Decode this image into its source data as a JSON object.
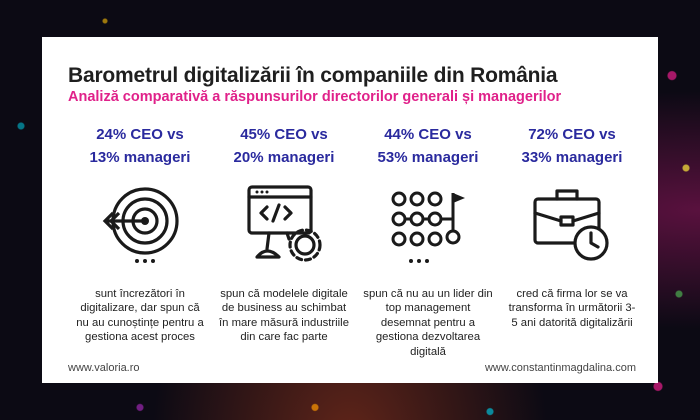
{
  "title": "Barometrul digitalizării în companiile din România",
  "subtitle": "Analiză comparativă a răspunsurilor directorilor generali și managerilor",
  "columns": [
    {
      "stat_line1": "24% CEO vs",
      "stat_line2": "13% manageri",
      "icon": "target-icon",
      "description": "sunt încrezători în digitalizare, dar spun că nu au cunoștințe pentru a gestiona acest proces"
    },
    {
      "stat_line1": "45% CEO vs",
      "stat_line2": "20% manageri",
      "icon": "code-monitor-icon",
      "description": "spun că modelele digitale de business au schimbat în mare măsură industriile din care fac parte"
    },
    {
      "stat_line1": "44% CEO vs",
      "stat_line2": "53% manageri",
      "icon": "path-grid-icon",
      "description": "spun că nu au un lider din top management desemnat pentru a gestiona dezvoltarea digitală"
    },
    {
      "stat_line1": "72% CEO vs",
      "stat_line2": "33% manageri",
      "icon": "briefcase-clock-icon",
      "description": "cred că firma lor se va transforma în următorii 3-5 ani datorită digitalizării"
    }
  ],
  "footer": {
    "left": "www.valoria.ro",
    "right": "www.constantinmagdalina.com"
  },
  "colors": {
    "stat": "#2a2a9e",
    "subtitle": "#e0218a",
    "title": "#1f1f1f"
  }
}
